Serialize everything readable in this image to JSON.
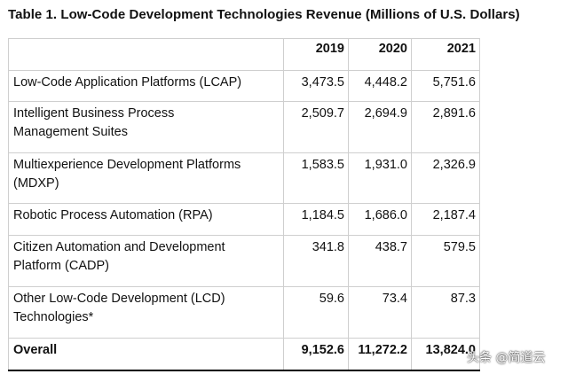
{
  "title": "Table 1. Low-Code Development Technologies Revenue (Millions of U.S. Dollars)",
  "columns": [
    "",
    "2019",
    "2020",
    "2021"
  ],
  "rows": [
    {
      "label_lines": [
        "Low-Code Application Platforms (LCAP)"
      ],
      "values": [
        "3,473.5",
        "4,448.2",
        "5,751.6"
      ]
    },
    {
      "label_lines": [
        "Intelligent Business Process",
        "Management Suites"
      ],
      "values": [
        "2,509.7",
        "2,694.9",
        "2,891.6"
      ]
    },
    {
      "label_lines": [
        "Multiexperience Development Platforms",
        "(MDXP)"
      ],
      "values": [
        "1,583.5",
        "1,931.0",
        "2,326.9"
      ]
    },
    {
      "label_lines": [
        "Robotic Process Automation (RPA)"
      ],
      "values": [
        "1,184.5",
        "1,686.0",
        "2,187.4"
      ]
    },
    {
      "label_lines": [
        "Citizen Automation and Development",
        "Platform (CADP)"
      ],
      "values": [
        "341.8",
        "438.7",
        "579.5"
      ]
    },
    {
      "label_lines": [
        "Other Low-Code Development (LCD)",
        "Technologies*"
      ],
      "values": [
        "59.6",
        "73.4",
        "87.3"
      ]
    }
  ],
  "overall": {
    "label": "Overall",
    "values": [
      "9,152.6",
      "11,272.2",
      "13,824.0"
    ]
  },
  "watermark": "头条 @简道云"
}
